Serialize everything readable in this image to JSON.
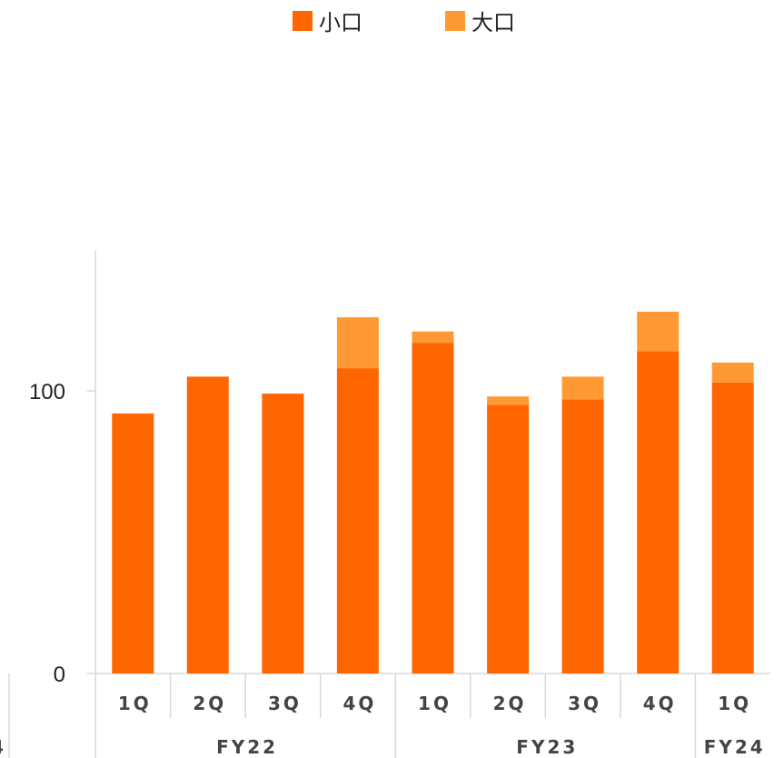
{
  "chart_data": {
    "type": "bar",
    "stacked": true,
    "categories": [
      "1Q",
      "2Q",
      "3Q",
      "4Q",
      "1Q",
      "2Q",
      "3Q",
      "4Q",
      "1Q"
    ],
    "groups": [
      {
        "label": "FY22",
        "start": 0,
        "end": 3
      },
      {
        "label": "FY23",
        "start": 4,
        "end": 7
      },
      {
        "label": "FY24",
        "start": 8,
        "end": 8
      }
    ],
    "series": [
      {
        "name": "小口",
        "color": "#FF6600",
        "values": [
          92,
          105,
          99,
          108,
          117,
          95,
          97,
          114,
          103
        ]
      },
      {
        "name": "大口",
        "color": "#FF9933",
        "values": [
          0,
          0,
          0,
          18,
          4,
          3,
          8,
          14,
          7
        ]
      }
    ],
    "yticks": [
      0,
      100
    ],
    "ylim": [
      0,
      150
    ],
    "legend_position": "top-center",
    "grid": false,
    "truncated_left_label": "4"
  }
}
